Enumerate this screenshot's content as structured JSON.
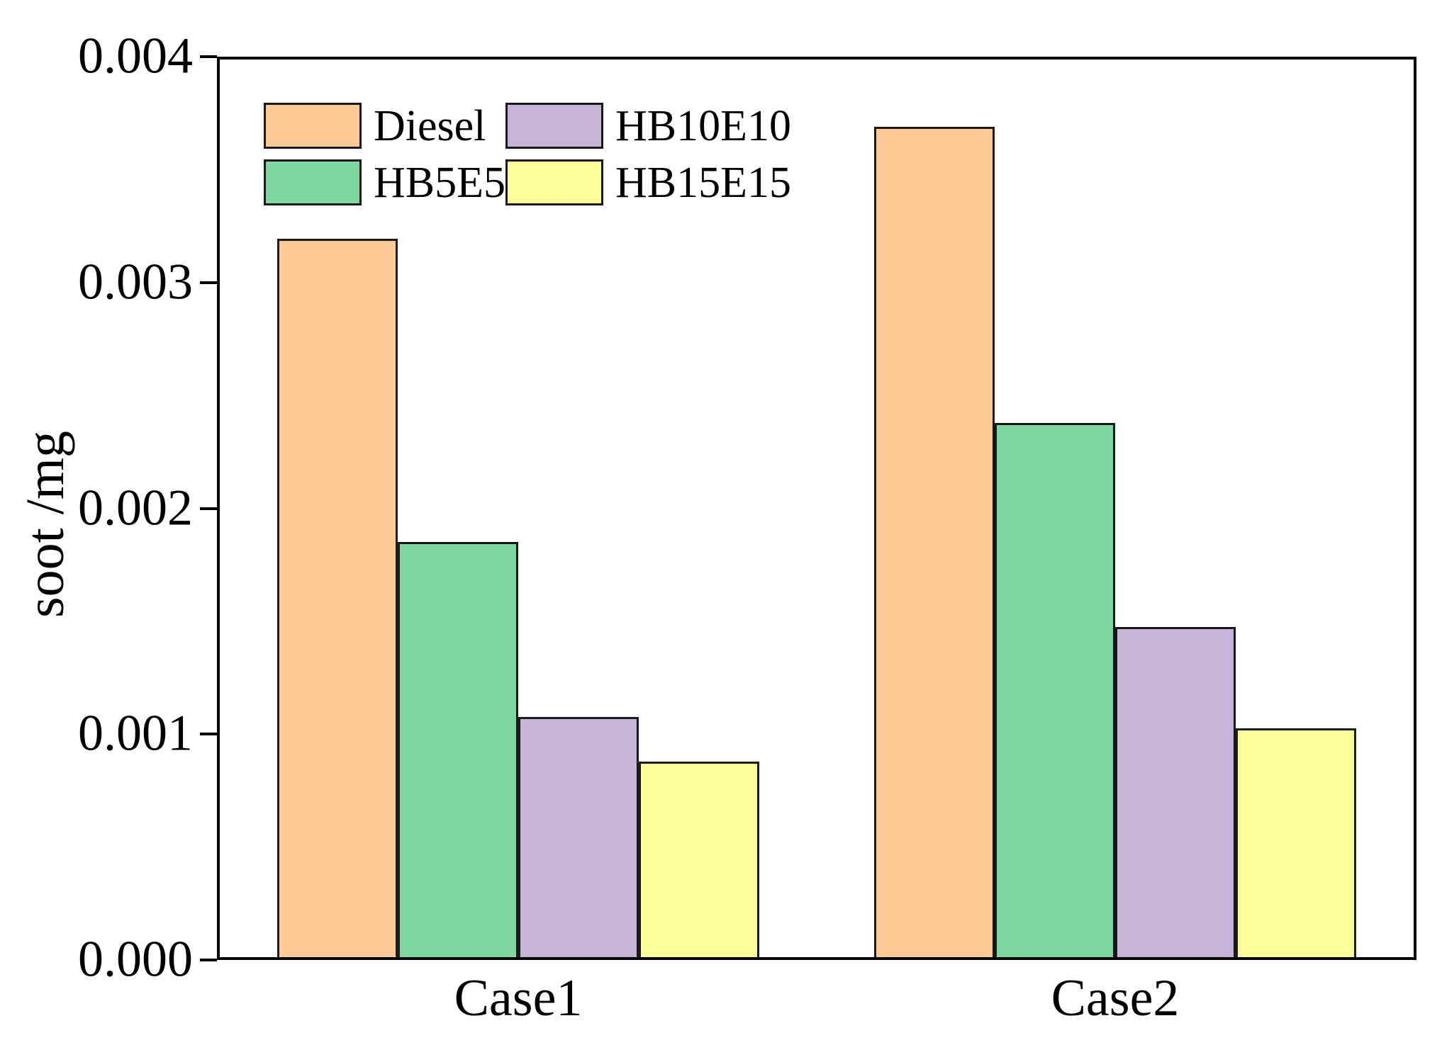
{
  "chart_data": {
    "type": "bar",
    "title": "",
    "xlabel": "",
    "ylabel": "soot /mg",
    "categories": [
      "Case1",
      "Case2"
    ],
    "series": [
      {
        "name": "Diesel",
        "color": "#FBCA96",
        "values": [
          0.0032,
          0.0037
        ]
      },
      {
        "name": "HB5E5",
        "color": "#7FD79F",
        "values": [
          0.00185,
          0.00238
        ]
      },
      {
        "name": "HB10E10",
        "color": "#C8B3D8",
        "values": [
          0.00107,
          0.00147
        ]
      },
      {
        "name": "HB15E15",
        "color": "#FCFC99",
        "values": [
          0.00087,
          0.00102
        ]
      }
    ],
    "ylim": [
      0,
      0.004
    ],
    "yticks": [
      "0.000",
      "0.001",
      "0.002",
      "0.003",
      "0.004"
    ],
    "grid": false,
    "legend_position": "top-left",
    "legend_columns": 2,
    "bar_edge_color": "#1a1a1a",
    "axis_color": "#000000"
  }
}
